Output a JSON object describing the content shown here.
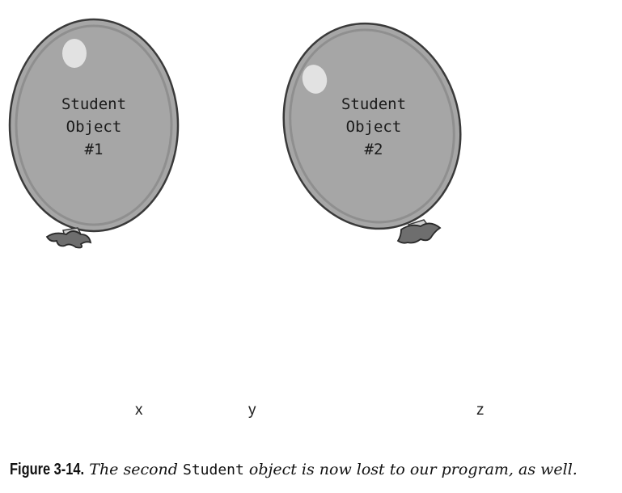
{
  "balloons": [
    {
      "lines": [
        "Student",
        "Object",
        "#1"
      ]
    },
    {
      "lines": [
        "Student",
        "Object",
        "#2"
      ]
    }
  ],
  "variables": [
    "x",
    "y",
    "z"
  ],
  "caption": {
    "figure_number": "Figure 3-14.",
    "text_before": "The second ",
    "code": "Student",
    "text_after": " object is now lost to our program, as well."
  },
  "colors": {
    "balloon_fill": "#a6a6a6",
    "balloon_stroke": "#3a3a3a",
    "highlight": "#e2e2e2",
    "knot_fill": "#6e6e6e"
  }
}
